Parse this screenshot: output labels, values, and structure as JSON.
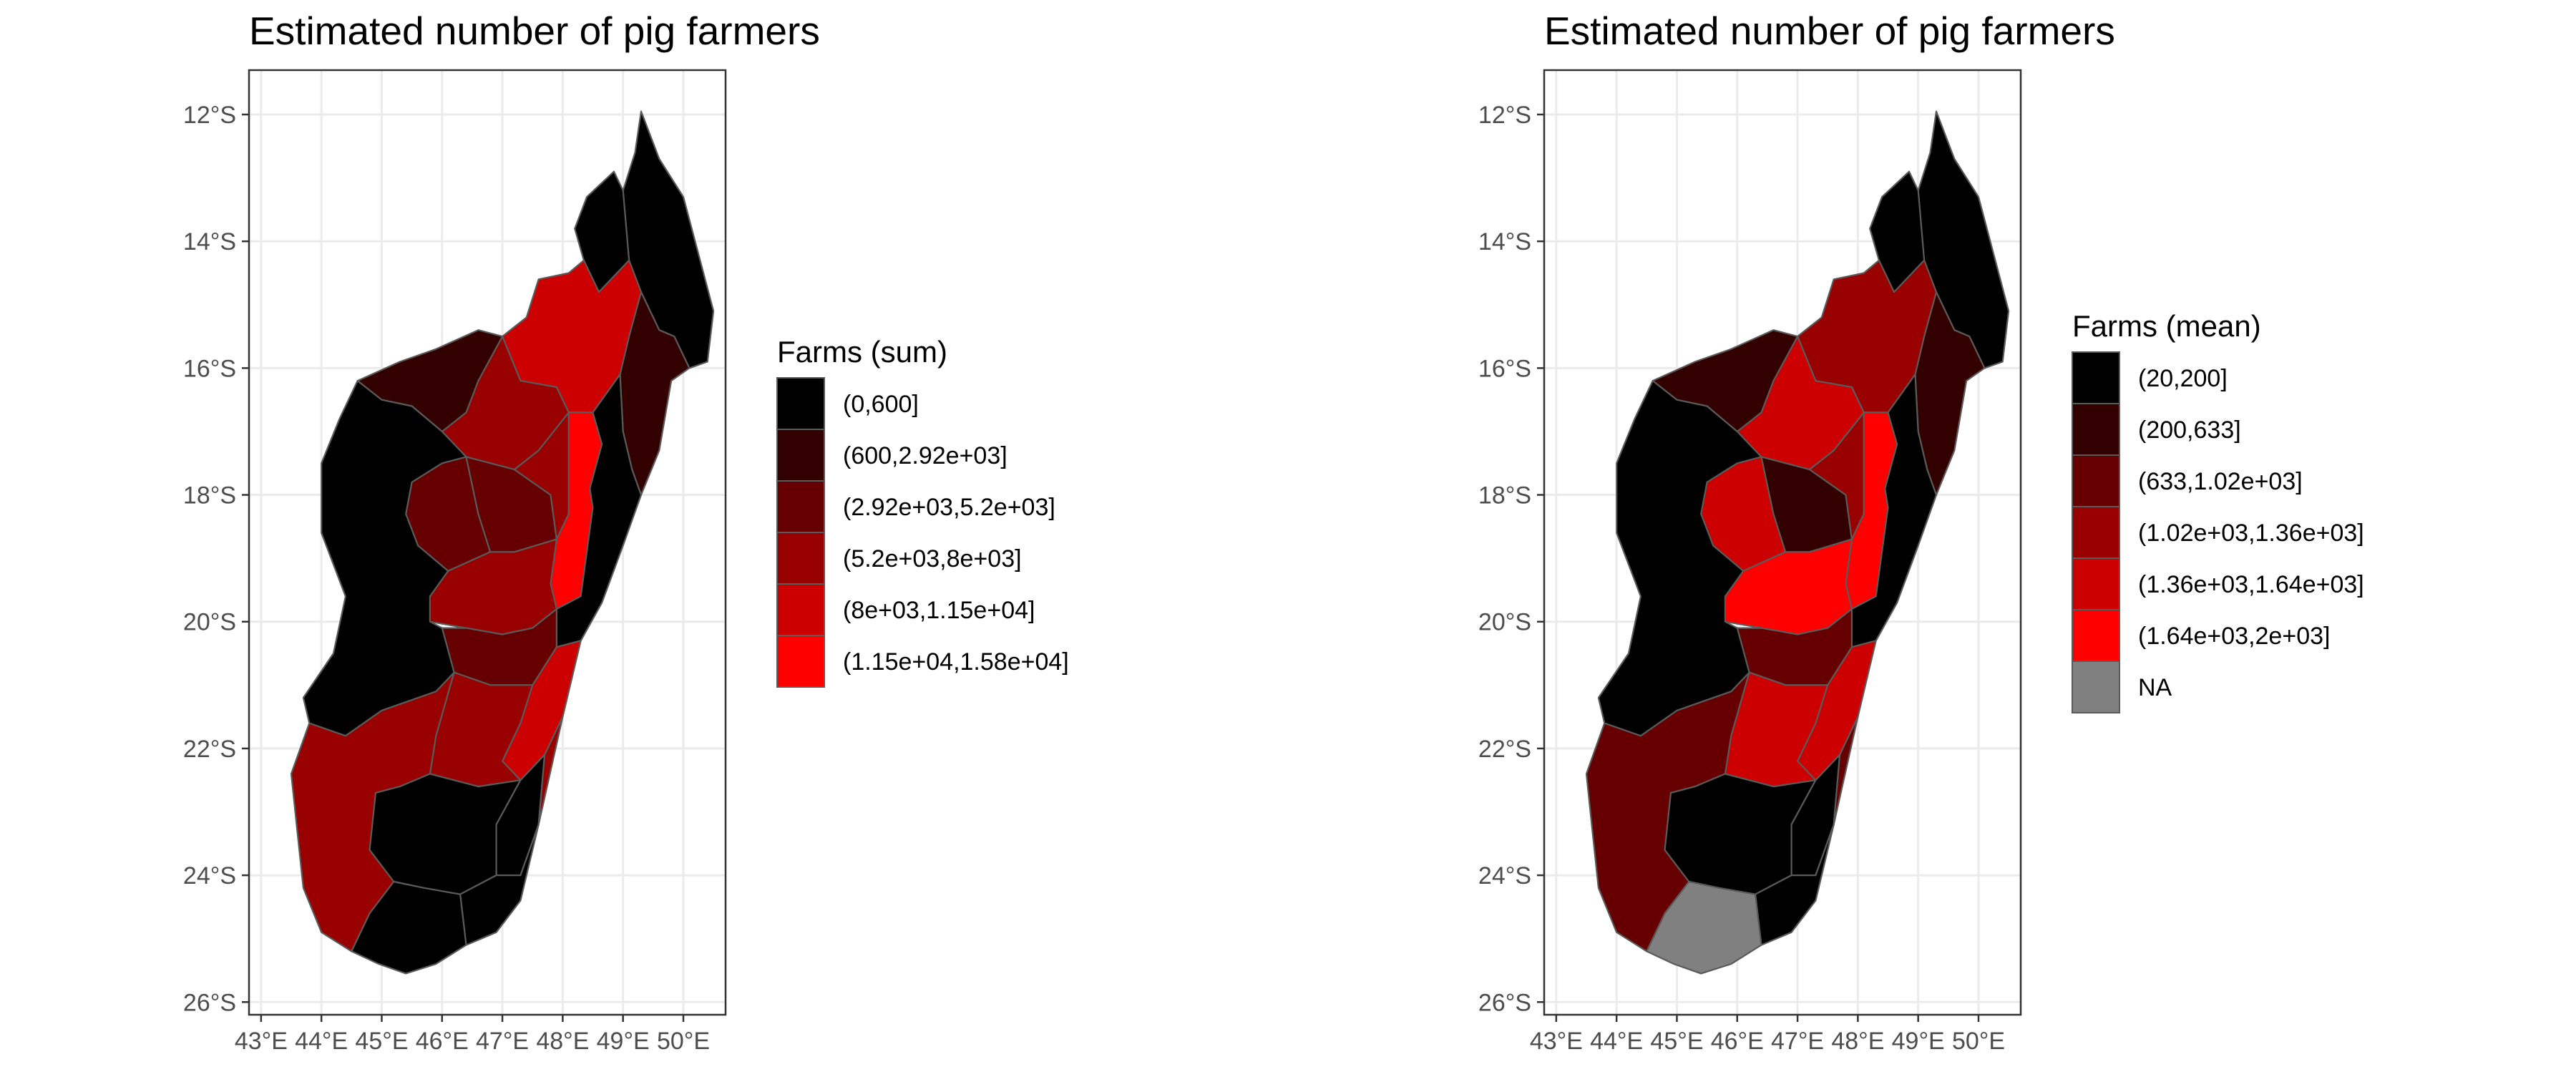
{
  "maps": [
    {
      "title": "Estimated number of pig farmers",
      "legend_title": "Farms (sum)",
      "legend": [
        {
          "label": "(0,600]",
          "color": "#000000"
        },
        {
          "label": "(600,2.92e+03]",
          "color": "#330000"
        },
        {
          "label": "(2.92e+03,5.2e+03]",
          "color": "#660000"
        },
        {
          "label": "(5.2e+03,8e+03]",
          "color": "#990000"
        },
        {
          "label": "(8e+03,1.15e+04]",
          "color": "#cc0000"
        },
        {
          "label": "(1.15e+04,1.58e+04]",
          "color": "#ff0000"
        }
      ],
      "region_classes": [
        0,
        0,
        1,
        4,
        3,
        1,
        2,
        2,
        3,
        5,
        0,
        3,
        4,
        2,
        3,
        3,
        0,
        0,
        3,
        0,
        0,
        0
      ]
    },
    {
      "title": "Estimated number of pig farmers",
      "legend_title": "Farms (mean)",
      "legend": [
        {
          "label": "(20,200]",
          "color": "#000000"
        },
        {
          "label": "(200,633]",
          "color": "#330000"
        },
        {
          "label": "(633,1.02e+03]",
          "color": "#660000"
        },
        {
          "label": "(1.02e+03,1.36e+03]",
          "color": "#990000"
        },
        {
          "label": "(1.36e+03,1.64e+03]",
          "color": "#cc0000"
        },
        {
          "label": "(1.64e+03,2e+03]",
          "color": "#ff0000"
        },
        {
          "label": "NA",
          "color": "#808080"
        }
      ],
      "region_classes": [
        0,
        0,
        1,
        3,
        4,
        1,
        4,
        1,
        3,
        5,
        0,
        5,
        4,
        2,
        4,
        2,
        0,
        0,
        2,
        0,
        6,
        0
      ]
    }
  ],
  "axes": {
    "x_ticks": [
      "43°E",
      "44°E",
      "45°E",
      "46°E",
      "47°E",
      "48°E",
      "49°E",
      "50°E"
    ],
    "y_ticks": [
      "12°S",
      "14°S",
      "16°S",
      "18°S",
      "20°S",
      "22°S",
      "24°S",
      "26°S"
    ],
    "x_values": [
      43,
      44,
      45,
      46,
      47,
      48,
      49,
      50
    ],
    "y_values": [
      -12,
      -14,
      -16,
      -18,
      -20,
      -22,
      -24,
      -26
    ]
  }
}
